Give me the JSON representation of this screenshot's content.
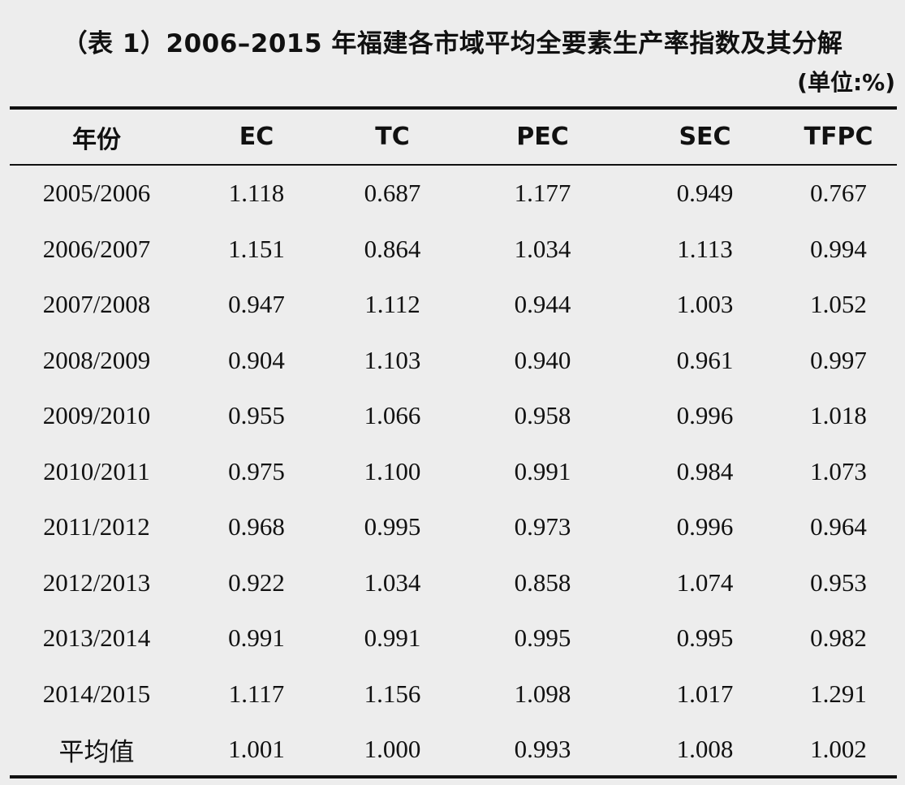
{
  "title": "（表 1）2006–2015 年福建各市域平均全要素生产率指数及其分解",
  "unit": "(单位:%)",
  "table": {
    "headers": [
      "年份",
      "EC",
      "TC",
      "PEC",
      "SEC",
      "TFPC"
    ],
    "rows": [
      [
        "2005/2006",
        "1.118",
        "0.687",
        "1.177",
        "0.949",
        "0.767"
      ],
      [
        "2006/2007",
        "1.151",
        "0.864",
        "1.034",
        "1.113",
        "0.994"
      ],
      [
        "2007/2008",
        "0.947",
        "1.112",
        "0.944",
        "1.003",
        "1.052"
      ],
      [
        "2008/2009",
        "0.904",
        "1.103",
        "0.940",
        "0.961",
        "0.997"
      ],
      [
        "2009/2010",
        "0.955",
        "1.066",
        "0.958",
        "0.996",
        "1.018"
      ],
      [
        "2010/2011",
        "0.975",
        "1.100",
        "0.991",
        "0.984",
        "1.073"
      ],
      [
        "2011/2012",
        "0.968",
        "0.995",
        "0.973",
        "0.996",
        "0.964"
      ],
      [
        "2012/2013",
        "0.922",
        "1.034",
        "0.858",
        "1.074",
        "0.953"
      ],
      [
        "2013/2014",
        "0.991",
        "0.991",
        "0.995",
        "0.995",
        "0.982"
      ],
      [
        "2014/2015",
        "1.117",
        "1.156",
        "1.098",
        "1.017",
        "1.291"
      ],
      [
        "平均值",
        "1.001",
        "1.000",
        "0.993",
        "1.008",
        "1.002"
      ]
    ]
  }
}
